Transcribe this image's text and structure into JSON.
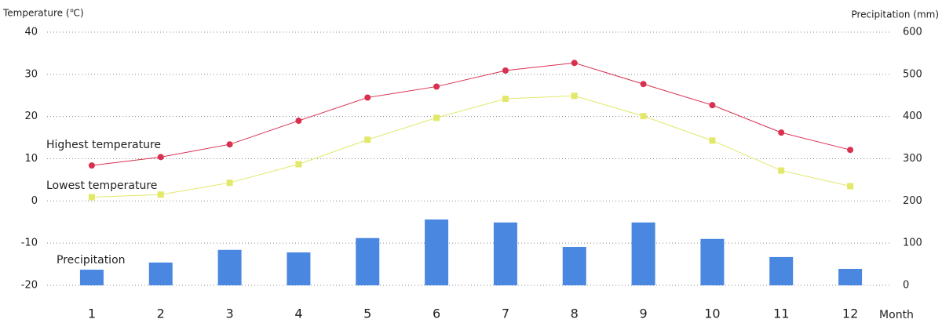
{
  "chart_data": {
    "type": "combo",
    "y_label": "Temperature (℃)",
    "y2_label": "Precipitation (mm)",
    "x_label": "Month",
    "categories": [
      "1",
      "2",
      "3",
      "4",
      "5",
      "6",
      "7",
      "8",
      "9",
      "10",
      "11",
      "12"
    ],
    "ylim": [
      -20,
      40
    ],
    "yticks": [
      -20,
      -10,
      0,
      10,
      20,
      30,
      40
    ],
    "y2lim": [
      0,
      600
    ],
    "y2ticks": [
      0,
      100,
      200,
      300,
      400,
      500,
      600
    ],
    "grid": true,
    "series": [
      {
        "name": "Highest temperature",
        "type": "line",
        "marker": "circle",
        "color": "#d9304f",
        "values": [
          8.4,
          10.4,
          13.4,
          19.0,
          24.5,
          27.1,
          30.9,
          32.7,
          27.7,
          22.7,
          16.2,
          12.1
        ]
      },
      {
        "name": "Lowest temperature",
        "type": "line",
        "marker": "square",
        "color": "#e2e86a",
        "values": [
          0.9,
          1.5,
          4.3,
          8.7,
          14.5,
          19.7,
          24.2,
          24.9,
          20.1,
          14.3,
          7.2,
          3.5
        ]
      },
      {
        "name": "Precipitation",
        "type": "bar",
        "axis": "y2",
        "color": "#4a87e0",
        "values": [
          37,
          54,
          84,
          78,
          112,
          156,
          149,
          91,
          149,
          110,
          67,
          39
        ]
      }
    ]
  }
}
